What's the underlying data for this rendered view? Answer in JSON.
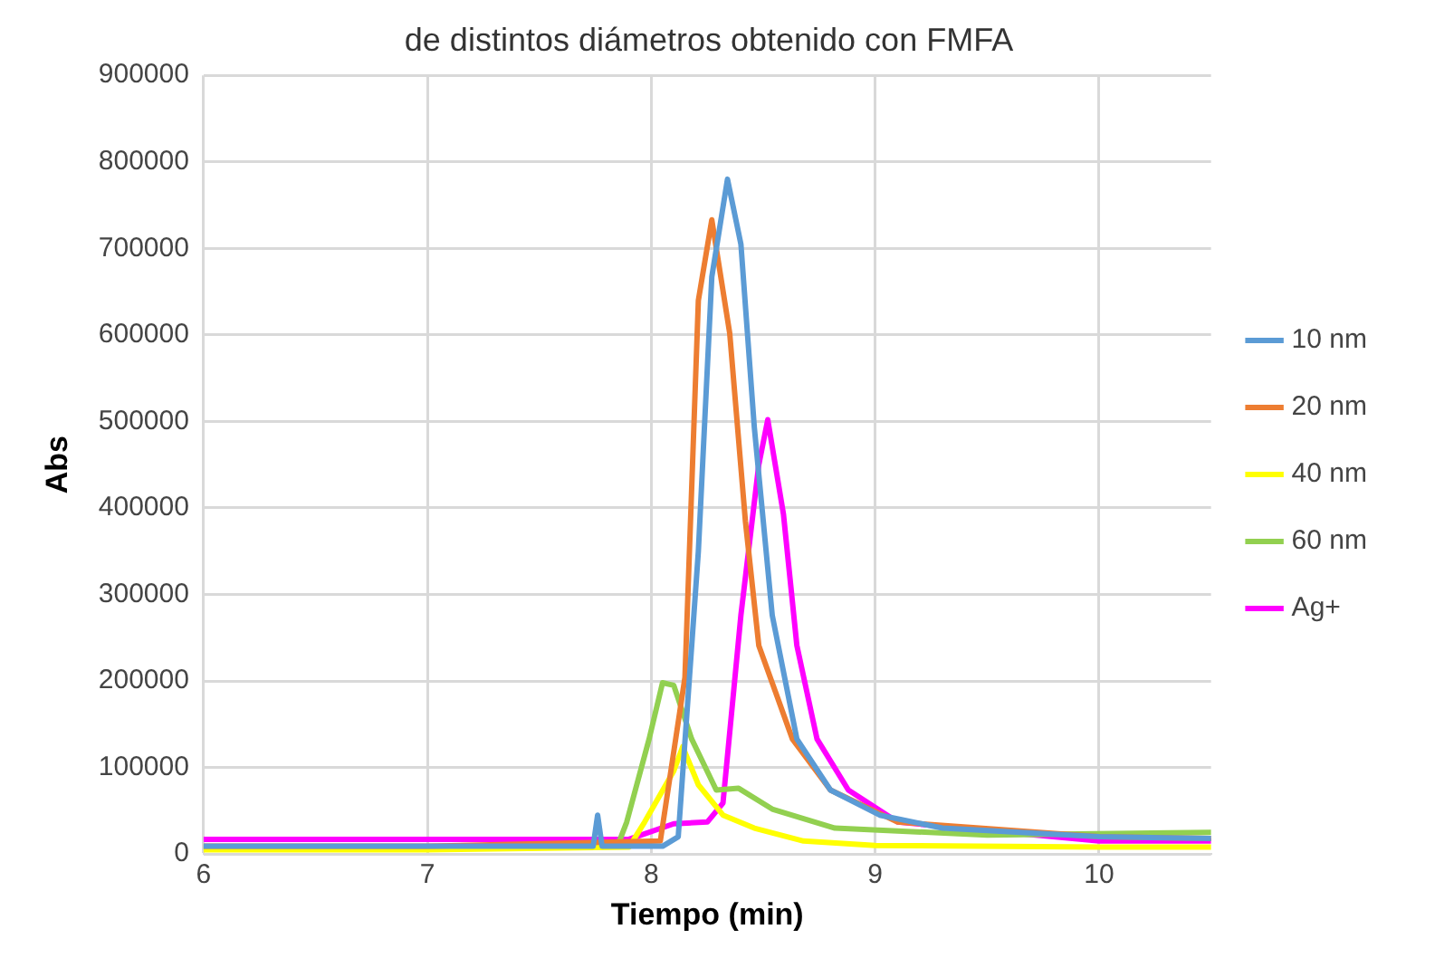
{
  "chart_data": {
    "type": "line",
    "title": "de distintos diámetros obtenido con FMFA",
    "xlabel": "Tiempo (min)",
    "ylabel": "Abs",
    "xlim": [
      6,
      10.5
    ],
    "xticks": [
      6,
      7,
      8,
      9,
      10
    ],
    "ylim": [
      0,
      900000
    ],
    "yticks": [
      0,
      100000,
      200000,
      300000,
      400000,
      500000,
      600000,
      700000,
      800000,
      900000
    ],
    "grid": true,
    "legend": "right",
    "marker": "none",
    "line_style": "solid",
    "series": [
      {
        "name": "10 nm",
        "color": "#5b9bd5",
        "x": [
          6,
          7,
          7.74,
          7.76,
          7.78,
          8.05,
          8.12,
          8.21,
          8.27,
          8.34,
          8.4,
          8.46,
          8.54,
          8.65,
          8.8,
          9.02,
          9.3,
          10,
          10.5
        ],
        "values": [
          9000,
          9000,
          9000,
          45000,
          9000,
          9000,
          20000,
          350000,
          667000,
          780000,
          705000,
          493000,
          276000,
          133000,
          74000,
          45000,
          30000,
          20000,
          18000
        ]
      },
      {
        "name": "20 nm",
        "color": "#ed7d31",
        "x": [
          6,
          7,
          8.04,
          8.15,
          8.21,
          8.27,
          8.35,
          8.42,
          8.48,
          8.63,
          8.8,
          9.1,
          10,
          10.5
        ],
        "values": [
          9000,
          9000,
          15000,
          204000,
          640000,
          733000,
          602000,
          385000,
          241000,
          133000,
          74000,
          37000,
          20000,
          18000
        ]
      },
      {
        "name": "40 nm",
        "color": "#ffff00",
        "x": [
          6,
          7,
          7.9,
          7.97,
          8.1,
          8.14,
          8.21,
          8.32,
          8.46,
          8.68,
          9,
          10,
          10.5
        ],
        "values": [
          5000,
          5000,
          8000,
          37000,
          96000,
          124000,
          80000,
          45000,
          30000,
          15000,
          10000,
          8000,
          8000
        ]
      },
      {
        "name": "60 nm",
        "color": "#92d050",
        "x": [
          6,
          7,
          7.85,
          7.89,
          7.99,
          8.05,
          8.1,
          8.18,
          8.29,
          8.39,
          8.54,
          8.82,
          9.5,
          10.5
        ],
        "values": [
          8000,
          8000,
          10000,
          37000,
          133000,
          198000,
          195000,
          133000,
          74000,
          76000,
          52000,
          30000,
          22000,
          25000
        ]
      },
      {
        "name": "Ag+",
        "color": "#ff00ff",
        "x": [
          6,
          7,
          7.9,
          8.1,
          8.25,
          8.32,
          8.4,
          8.48,
          8.52,
          8.59,
          8.65,
          8.74,
          8.88,
          9.1,
          10,
          10.5
        ],
        "values": [
          17000,
          17000,
          17000,
          35000,
          37000,
          59000,
          276000,
          450000,
          502000,
          393000,
          241000,
          133000,
          74000,
          37000,
          15000,
          15000
        ]
      }
    ]
  }
}
